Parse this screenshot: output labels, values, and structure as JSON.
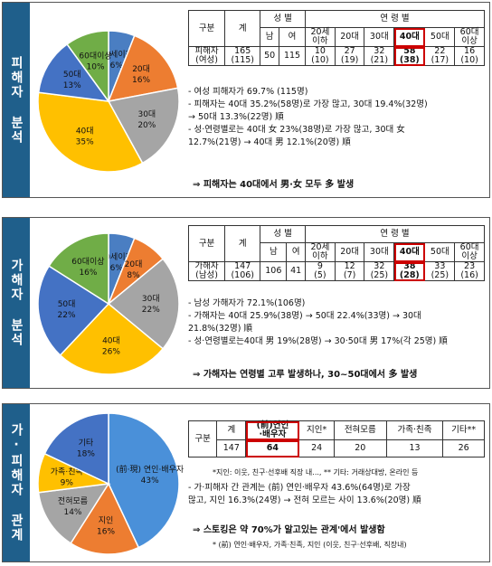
{
  "p1": {
    "side": "피해자 분석",
    "pie": [
      {
        "label": "20세이하",
        "pct": "6%",
        "value": 6,
        "color": "#4a7ec2"
      },
      {
        "label": "20대",
        "pct": "16%",
        "value": 16,
        "color": "#ed7d31"
      },
      {
        "label": "30대",
        "pct": "20%",
        "value": 20,
        "color": "#a5a5a5"
      },
      {
        "label": "40대",
        "pct": "35%",
        "value": 35,
        "color": "#ffc000"
      },
      {
        "label": "50대",
        "pct": "13%",
        "value": 13,
        "color": "#4472c4"
      },
      {
        "label": "60대이상",
        "pct": "10%",
        "value": 10,
        "color": "#70ad47"
      }
    ],
    "table": {
      "h_gubun": "구분",
      "h_total": "계",
      "h_gender": "성 별",
      "h_age": "연 령 별",
      "sub": [
        "남",
        "여",
        "20세\n이하",
        "20대",
        "30대",
        "40대",
        "50대",
        "60대\n이상"
      ],
      "row_label": "피해자\n(여성)",
      "total": "165\n(115)",
      "vals": [
        "50",
        "115",
        "10\n(10)",
        "27\n(19)",
        "32\n(21)",
        "58\n(38)",
        "22\n(17)",
        "16\n(10)"
      ]
    },
    "bullets": [
      "- 여성 피해자가 69.7% (115명)",
      "- 피해자는 40대 35.2%(58명)로 가장 많고, 30대 19.4%(32명)",
      "  → 50대 13.3%(22명) 順",
      "- 성·연령별로는 40대 女 23%(38명)로 가장 많고, 30대 女",
      "  12.7%(21명) → 40대 男 12.1%(20명) 順"
    ],
    "conclusion": "⇒ 피해자는 40대에서 男·女 모두 多 발생"
  },
  "p2": {
    "side": "가해자 분석",
    "pie": [
      {
        "label": "20세이하",
        "pct": "6%",
        "value": 6,
        "color": "#4a7ec2"
      },
      {
        "label": "20대",
        "pct": "8%",
        "value": 8,
        "color": "#ed7d31"
      },
      {
        "label": "30대",
        "pct": "22%",
        "value": 22,
        "color": "#a5a5a5"
      },
      {
        "label": "40대",
        "pct": "26%",
        "value": 26,
        "color": "#ffc000"
      },
      {
        "label": "50대",
        "pct": "22%",
        "value": 22,
        "color": "#4472c4"
      },
      {
        "label": "60대이상",
        "pct": "16%",
        "value": 16,
        "color": "#70ad47"
      }
    ],
    "table": {
      "h_gubun": "구분",
      "h_total": "계",
      "h_gender": "성 별",
      "h_age": "연 령 별",
      "sub": [
        "남",
        "여",
        "20세\n이하",
        "20대",
        "30대",
        "40대",
        "50대",
        "60대\n이상"
      ],
      "row_label": "가해자\n(남성)",
      "total": "147\n(106)",
      "vals": [
        "106",
        "41",
        "9\n(5)",
        "12\n(7)",
        "32\n(25)",
        "38\n(28)",
        "33\n(25)",
        "23\n(16)"
      ]
    },
    "bullets": [
      "- 남성 가해자가 72.1%(106명)",
      "- 가해자는 40대 25.9%(38명) → 50대 22.4%(33명) → 30대",
      "  21.8%(32명) 順",
      "- 성·연령별로는40대 男 19%(28명) → 30·50대 男 17%(각 25명) 順"
    ],
    "conclusion": "⇒ 가해자는 연령별 고루 발생하나, 30~50대에서 多 발생"
  },
  "p3": {
    "side": "가·피해자 관계",
    "pie": [
      {
        "label": "(前·現) 연인·배우자",
        "pct": "43%",
        "value": 43,
        "color": "#4a90d9"
      },
      {
        "label": "지인",
        "pct": "16%",
        "value": 16,
        "color": "#ed7d31"
      },
      {
        "label": "전혀모름",
        "pct": "14%",
        "value": 14,
        "color": "#a5a5a5"
      },
      {
        "label": "가족·친족",
        "pct": "9%",
        "value": 9,
        "color": "#ffc000"
      },
      {
        "label": "기타",
        "pct": "18%",
        "value": 18,
        "color": "#4472c4"
      }
    ],
    "table": {
      "headers": [
        "구분",
        "계",
        "(前)연인\n·배우자",
        "지인*",
        "전혀모름",
        "가족·친족",
        "기타**"
      ],
      "vals": [
        "147",
        "64",
        "24",
        "20",
        "13",
        "26"
      ]
    },
    "note1": "*지인: 이웃, 친구·선후배 직장 내..., ** 기타: 거래상대방, 온라인 등",
    "bullets": [
      "- 가·피해자 간 관계는 (前) 연인·배우자 43.6%(64명)로 가장",
      "  많고, 지인 16.3%(24명) → 전혀 모르는 사이 13.6%(20명) 順"
    ],
    "conclusion": "⇒ 스토킹은 약 70%가 알고있는 관계'에서 발생함",
    "note2": "* (前) 연인·배우자, 가족·친족, 지인 (이웃, 친구·선후배, 직장내)"
  }
}
